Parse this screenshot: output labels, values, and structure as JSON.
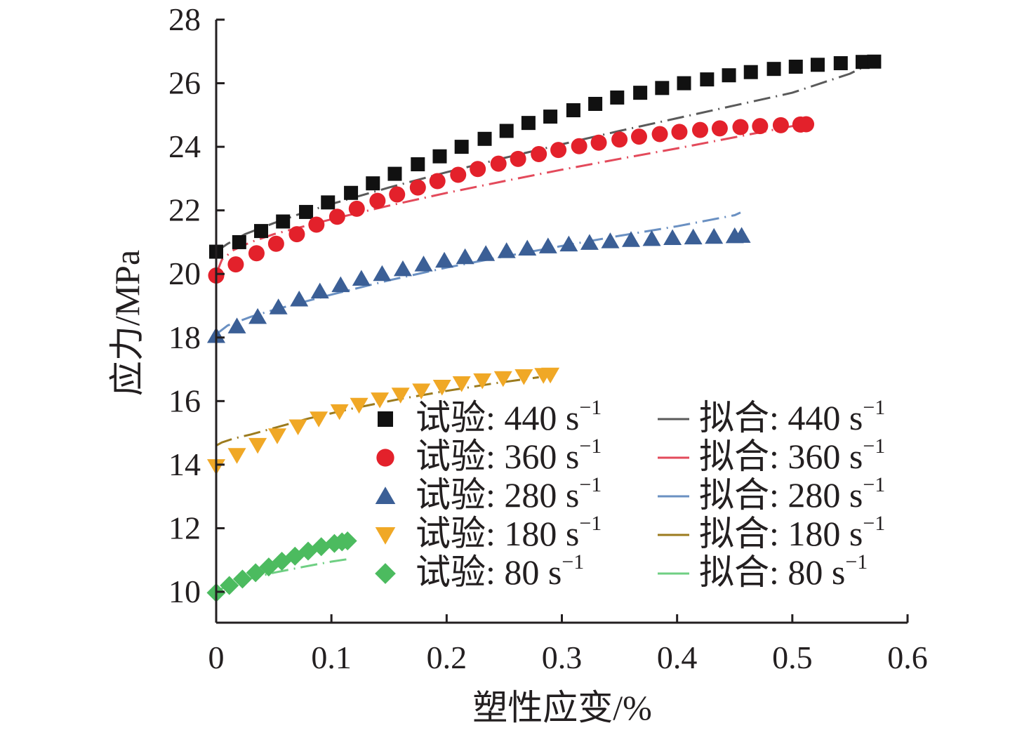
{
  "chart_data": {
    "type": "scatter",
    "title": "",
    "xlabel": "塑性应变/%",
    "ylabel": "应力/MPa",
    "xlim": [
      0,
      0.6
    ],
    "ylim": [
      10,
      28
    ],
    "xticks": [
      "0",
      "0.1",
      "0.2",
      "0.3",
      "0.4",
      "0.5",
      "0.6"
    ],
    "yticks": [
      "10",
      "12",
      "14",
      "16",
      "18",
      "20",
      "22",
      "24",
      "26",
      "28"
    ],
    "grid": false,
    "legend_position": "bottom-right",
    "series": [
      {
        "name": "试验: 440 s",
        "superscript": "−1",
        "kind": "experiment",
        "marker": "square",
        "color": "#111111",
        "x": [
          0,
          0.02,
          0.039,
          0.058,
          0.078,
          0.097,
          0.117,
          0.136,
          0.155,
          0.175,
          0.194,
          0.213,
          0.233,
          0.252,
          0.271,
          0.29,
          0.31,
          0.329,
          0.348,
          0.368,
          0.387,
          0.406,
          0.426,
          0.445,
          0.464,
          0.484,
          0.503,
          0.522,
          0.542,
          0.561,
          0.571
        ],
        "y": [
          20.7,
          21.0,
          21.35,
          21.65,
          21.95,
          22.25,
          22.55,
          22.85,
          23.15,
          23.45,
          23.7,
          24.0,
          24.25,
          24.5,
          24.75,
          24.95,
          25.15,
          25.35,
          25.55,
          25.7,
          25.85,
          26.0,
          26.12,
          26.25,
          26.35,
          26.45,
          26.52,
          26.58,
          26.63,
          26.67,
          26.68
        ]
      },
      {
        "name": "试验: 360 s",
        "superscript": "−1",
        "kind": "experiment",
        "marker": "circle",
        "color": "#e3212b",
        "x": [
          0,
          0.017,
          0.035,
          0.052,
          0.07,
          0.087,
          0.105,
          0.122,
          0.14,
          0.157,
          0.175,
          0.192,
          0.21,
          0.227,
          0.245,
          0.262,
          0.28,
          0.297,
          0.315,
          0.332,
          0.35,
          0.367,
          0.385,
          0.402,
          0.42,
          0.437,
          0.455,
          0.472,
          0.49,
          0.507,
          0.512
        ],
        "y": [
          19.95,
          20.3,
          20.65,
          20.95,
          21.25,
          21.55,
          21.8,
          22.05,
          22.3,
          22.5,
          22.72,
          22.92,
          23.12,
          23.3,
          23.47,
          23.62,
          23.77,
          23.9,
          24.02,
          24.13,
          24.23,
          24.32,
          24.4,
          24.47,
          24.53,
          24.58,
          24.62,
          24.65,
          24.68,
          24.7,
          24.71
        ]
      },
      {
        "name": "试验: 280 s",
        "superscript": "−1",
        "kind": "experiment",
        "marker": "triangle-up",
        "color": "#3b5f96",
        "x": [
          0,
          0.018,
          0.036,
          0.054,
          0.072,
          0.09,
          0.108,
          0.126,
          0.144,
          0.162,
          0.18,
          0.198,
          0.216,
          0.234,
          0.252,
          0.27,
          0.288,
          0.306,
          0.324,
          0.342,
          0.36,
          0.378,
          0.396,
          0.414,
          0.432,
          0.45,
          0.456
        ],
        "y": [
          18.05,
          18.35,
          18.65,
          18.95,
          19.2,
          19.45,
          19.65,
          19.85,
          20.0,
          20.15,
          20.3,
          20.42,
          20.53,
          20.63,
          20.72,
          20.8,
          20.87,
          20.93,
          20.98,
          21.03,
          21.07,
          21.1,
          21.13,
          21.15,
          21.17,
          21.19,
          21.2
        ]
      },
      {
        "name": "试验: 180 s",
        "superscript": "−1",
        "kind": "experiment",
        "marker": "triangle-down",
        "color": "#f0a826",
        "x": [
          0,
          0.018,
          0.036,
          0.053,
          0.071,
          0.089,
          0.107,
          0.124,
          0.142,
          0.16,
          0.178,
          0.196,
          0.213,
          0.231,
          0.249,
          0.267,
          0.284,
          0.29
        ],
        "y": [
          13.95,
          14.3,
          14.62,
          14.92,
          15.2,
          15.45,
          15.68,
          15.88,
          16.05,
          16.2,
          16.33,
          16.45,
          16.56,
          16.65,
          16.72,
          16.78,
          16.82,
          16.83
        ]
      },
      {
        "name": "试验: 80 s",
        "superscript": "−1",
        "kind": "experiment",
        "marker": "diamond",
        "color": "#4cbb5f",
        "x": [
          0,
          0.0114,
          0.0228,
          0.0342,
          0.0456,
          0.057,
          0.0684,
          0.0798,
          0.0912,
          0.1026,
          0.1092,
          0.114
        ],
        "y": [
          9.97,
          10.2,
          10.4,
          10.6,
          10.78,
          10.96,
          11.12,
          11.28,
          11.42,
          11.52,
          11.57,
          11.6
        ]
      },
      {
        "name": "拟合: 440 s",
        "superscript": "−1",
        "kind": "fit",
        "color": "#5a5a5a",
        "x": [
          0,
          0.01,
          0.025,
          0.05,
          0.075,
          0.1,
          0.15,
          0.2,
          0.25,
          0.3,
          0.35,
          0.4,
          0.45,
          0.5,
          0.55,
          0.575
        ],
        "y": [
          20.7,
          20.95,
          21.25,
          21.6,
          21.92,
          22.2,
          22.72,
          23.2,
          23.65,
          24.08,
          24.5,
          24.9,
          25.3,
          25.7,
          26.3,
          26.75
        ]
      },
      {
        "name": "拟合: 360 s",
        "superscript": "−1",
        "kind": "fit",
        "color": "#e34a5b",
        "x": [
          0,
          0.005,
          0.015,
          0.03,
          0.05,
          0.1,
          0.15,
          0.2,
          0.25,
          0.3,
          0.35,
          0.4,
          0.45,
          0.5,
          0.51
        ],
        "y": [
          20.0,
          20.45,
          20.75,
          21.0,
          21.25,
          21.72,
          22.15,
          22.55,
          22.92,
          23.28,
          23.62,
          23.95,
          24.3,
          24.65,
          24.72
        ]
      },
      {
        "name": "拟合: 280 s",
        "superscript": "−1",
        "kind": "fit",
        "color": "#6a90c2",
        "x": [
          0,
          0.01,
          0.03,
          0.05,
          0.1,
          0.15,
          0.2,
          0.25,
          0.3,
          0.35,
          0.4,
          0.45,
          0.455
        ],
        "y": [
          18.1,
          18.38,
          18.65,
          18.87,
          19.35,
          19.8,
          20.2,
          20.55,
          20.88,
          21.2,
          21.5,
          21.85,
          21.93
        ]
      },
      {
        "name": "拟合: 180 s",
        "superscript": "−1",
        "kind": "fit",
        "color": "#9c7b1e",
        "x": [
          0,
          0.005,
          0.015,
          0.03,
          0.05,
          0.08,
          0.12,
          0.16,
          0.2,
          0.24,
          0.28
        ],
        "y": [
          14.6,
          14.7,
          14.82,
          14.95,
          15.15,
          15.45,
          15.78,
          16.07,
          16.32,
          16.55,
          16.75
        ]
      },
      {
        "name": "拟合: 80 s",
        "superscript": "−1",
        "kind": "fit",
        "color": "#6fcf83",
        "x": [
          0,
          0.01,
          0.025,
          0.05,
          0.075,
          0.1,
          0.113
        ],
        "y": [
          10.0,
          10.2,
          10.38,
          10.6,
          10.78,
          10.95,
          11.02
        ]
      }
    ]
  }
}
